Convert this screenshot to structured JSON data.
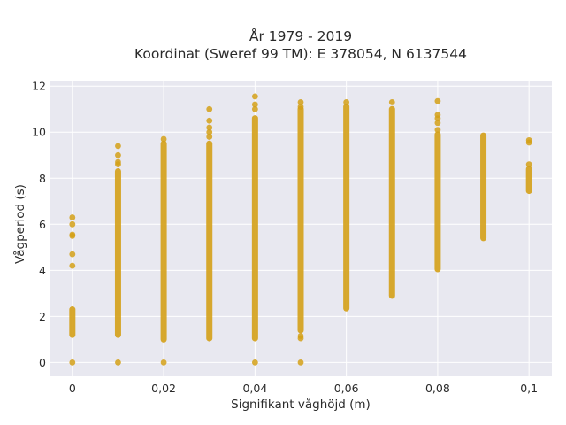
{
  "chart_data": {
    "type": "scatter",
    "title": "År 1979 - 2019",
    "subtitle": "Koordinat (Sweref 99 TM): E 378054, N 6137544",
    "xlabel": "Signifikant våghöjd (m)",
    "ylabel": "Vågperiod (s)",
    "xlim": [
      -0.005,
      0.105
    ],
    "ylim": [
      -0.6,
      12.2
    ],
    "x_ticks": [
      0,
      0.02,
      0.04,
      0.06,
      0.08,
      0.1
    ],
    "x_tick_labels": [
      "0",
      "0,02",
      "0,04",
      "0,06",
      "0,08",
      "0,1"
    ],
    "y_ticks": [
      0,
      2,
      4,
      6,
      8,
      10,
      12
    ],
    "y_tick_labels": [
      "0",
      "2",
      "4",
      "6",
      "8",
      "10",
      "12"
    ],
    "grid": true,
    "background": "#e8e8f0",
    "marker_color": "#d4a017",
    "series": [
      {
        "x": 0,
        "bands": [
          [
            1.2,
            2.3
          ]
        ],
        "points": [
          0,
          4.2,
          4.7,
          5.5,
          5.55,
          6.0,
          6.3
        ]
      },
      {
        "x": 0.01,
        "bands": [
          [
            1.2,
            8.3
          ]
        ],
        "points": [
          0,
          8.6,
          8.7,
          9.0,
          9.4
        ]
      },
      {
        "x": 0.02,
        "bands": [
          [
            1.0,
            9.5
          ]
        ],
        "points": [
          0,
          9.7
        ]
      },
      {
        "x": 0.03,
        "bands": [
          [
            1.05,
            9.5
          ]
        ],
        "points": [
          9.8,
          10.0,
          10.2,
          10.5,
          11.0
        ]
      },
      {
        "x": 0.04,
        "bands": [
          [
            1.05,
            10.6
          ]
        ],
        "points": [
          0,
          11.0,
          11.2,
          11.55
        ]
      },
      {
        "x": 0.05,
        "bands": [
          [
            1.4,
            11.0
          ]
        ],
        "points": [
          0,
          1.05,
          1.15,
          11.1,
          11.3
        ]
      },
      {
        "x": 0.06,
        "bands": [
          [
            2.35,
            11.1
          ]
        ],
        "points": [
          11.3
        ]
      },
      {
        "x": 0.07,
        "bands": [
          [
            2.9,
            11.0
          ]
        ],
        "points": [
          11.3
        ]
      },
      {
        "x": 0.08,
        "bands": [
          [
            4.05,
            9.9
          ]
        ],
        "points": [
          10.1,
          10.4,
          10.6,
          10.75,
          11.35
        ]
      },
      {
        "x": 0.09,
        "bands": [
          [
            5.4,
            9.85
          ]
        ],
        "points": []
      },
      {
        "x": 0.1,
        "bands": [
          [
            7.45,
            8.4
          ]
        ],
        "points": [
          8.6,
          9.55,
          9.65
        ]
      }
    ]
  }
}
